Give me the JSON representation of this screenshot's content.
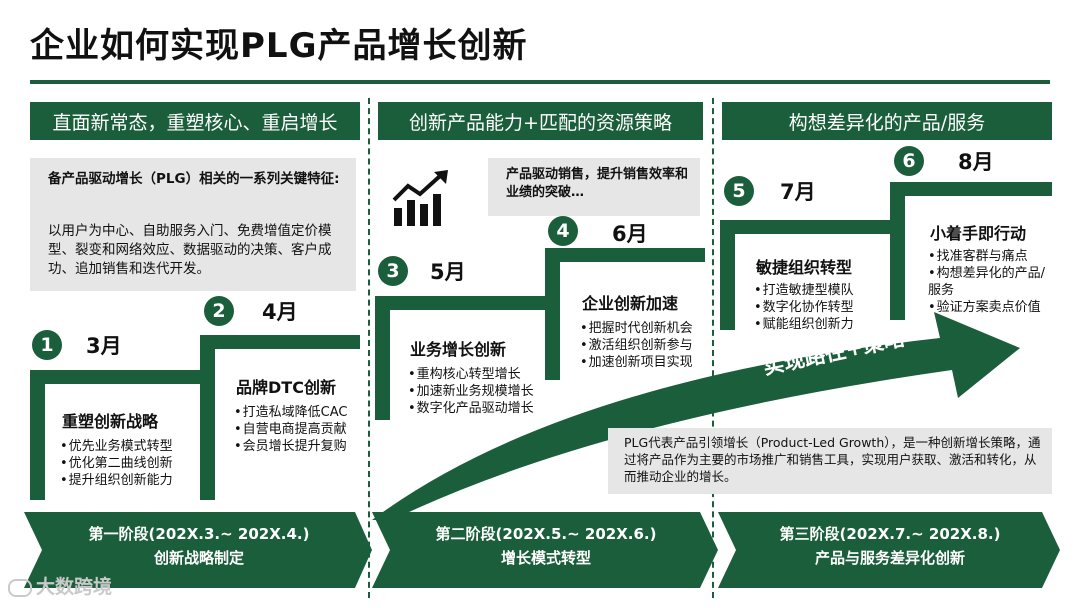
{
  "title": "企业如何实现PLG产品增长创新",
  "headers": [
    "直面新常态，重塑核心、重启增长",
    "创新产品能力+匹配的资源策略",
    "构想差异化的产品/服务"
  ],
  "intro": {
    "heading": "备产品驱动增长（PLG）相关的一系列关键特征:",
    "body": "以用户为中心、自助服务入门、免费增值定价模型、裂变和网络效应、数据驱动的决策、客户成功、追加销售和迭代开发。"
  },
  "box4_note": "产品驱动销售，提升销售效率和业绩的突破…",
  "steps": [
    {
      "num": "1",
      "month": "3月",
      "title": "重塑创新战略",
      "bullets": [
        "优先业务模式转型",
        "优化第二曲线创新",
        "提升组织创新能力"
      ]
    },
    {
      "num": "2",
      "month": "4月",
      "title": "品牌DTC创新",
      "bullets": [
        "打造私域降低CAC",
        "自营电商提高贡献",
        "会员增长提升复购"
      ]
    },
    {
      "num": "3",
      "month": "5月",
      "title": "业务增长创新",
      "bullets": [
        "重构核心转型增长",
        "加速新业务规模增长",
        "数字化产品驱动增长"
      ]
    },
    {
      "num": "4",
      "month": "6月",
      "title": "企业创新加速",
      "bullets": [
        "把握时代创新机会",
        "激活组织创新参与",
        "加速创新项目实现"
      ]
    },
    {
      "num": "5",
      "month": "7月",
      "title": "敏捷组织转型",
      "bullets": [
        "打造敏捷型模队",
        "数字化协作转型",
        "赋能组织创新力"
      ]
    },
    {
      "num": "6",
      "month": "8月",
      "title": "小着手即行动",
      "bullets": [
        "找准客群与痛点",
        "构想差异化的产品/服务",
        "验证方案卖点价值"
      ]
    }
  ],
  "arrow_label": "实现路径+策略",
  "plg_definition": "PLG代表产品引领增长（Product-Led Growth），是一种创新增长策略，通过将产品作为主要的市场推广和销售工具，实现用户获取、激活和转化，从而推动企业的增长。",
  "phases": [
    {
      "line1": "第一阶段(202X.3.~ 202X.4.)",
      "line2": "创新战略制定"
    },
    {
      "line1": "第二阶段(202X.5.~ 202X.6.)",
      "line2": "增长模式转型"
    },
    {
      "line1": "第三阶段(202X.7.~ 202X.8.)",
      "line2": "产品与服务差异化创新"
    }
  ],
  "watermark": "大数跨境",
  "colors": {
    "primary": "#1b5e3b",
    "grey_box": "#e6e6e6"
  }
}
